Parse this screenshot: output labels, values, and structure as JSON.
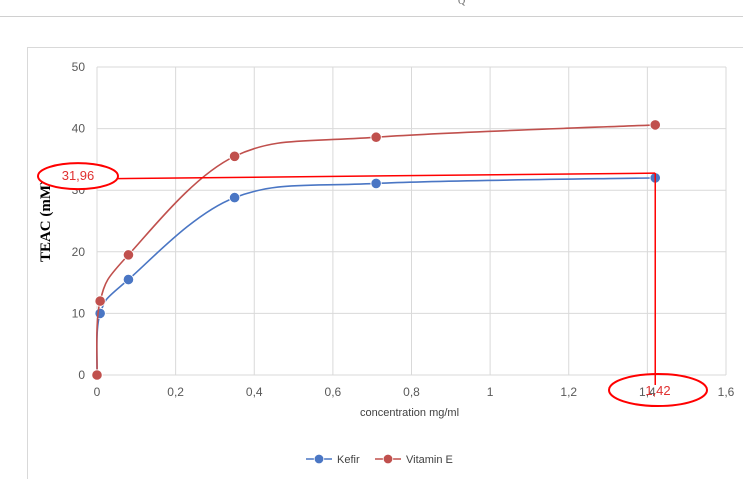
{
  "top_fragment": "Q",
  "chart_data": {
    "type": "line",
    "title": "",
    "xlabel": "concentration mg/ml",
    "ylabel": "TEAC (mM)",
    "xlim": [
      0,
      1.6
    ],
    "ylim": [
      0,
      50
    ],
    "x_ticks": [
      "0",
      "0,2",
      "0,4",
      "0,6",
      "0,8",
      "1",
      "1,2",
      "1,4",
      "1,6"
    ],
    "y_ticks": [
      "0",
      "10",
      "20",
      "30",
      "40",
      "50"
    ],
    "grid": true,
    "legend_position": "bottom",
    "series": [
      {
        "name": "Kefir",
        "color": "#4a76c4",
        "x": [
          0.0,
          0.008,
          0.08,
          0.35,
          0.71,
          1.42
        ],
        "y": [
          0.0,
          10.0,
          15.5,
          28.8,
          31.1,
          32.0
        ]
      },
      {
        "name": "Vitamin E",
        "color": "#c0504d",
        "x": [
          0.0,
          0.008,
          0.08,
          0.35,
          0.71,
          1.42
        ],
        "y": [
          0.0,
          12.0,
          19.5,
          35.5,
          38.6,
          40.6
        ]
      }
    ],
    "annotations": {
      "y_value_label": "31,96",
      "x_value_label": "1,42",
      "y_value": 31.96,
      "x_value": 1.42,
      "color": "#ff0000"
    }
  }
}
